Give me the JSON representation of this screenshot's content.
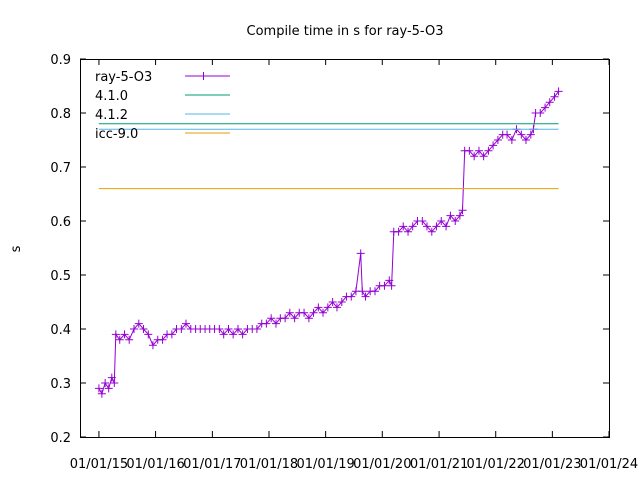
{
  "chart_data": {
    "type": "line",
    "title": "Compile time in s for ray-5-O3",
    "xlabel": "",
    "ylabel": "s",
    "x_ticks": [
      "01/01/15",
      "01/01/16",
      "01/01/17",
      "01/01/18",
      "01/01/19",
      "01/01/20",
      "01/01/21",
      "01/01/22",
      "01/01/23",
      "01/01/24"
    ],
    "xlim": [
      "2014-09-01",
      "2024-01-01"
    ],
    "y_ticks": [
      "0.2",
      "0.3",
      "0.4",
      "0.5",
      "0.6",
      "0.7",
      "0.8",
      "0.9"
    ],
    "ylim": [
      0.2,
      0.9
    ],
    "grid": false,
    "legend_position": "top-left",
    "series": [
      {
        "name": "ray-5-O3",
        "style": "linespoints",
        "color": "#9400d3",
        "points": [
          [
            "2015-01-01",
            0.29
          ],
          [
            "2015-01-20",
            0.28
          ],
          [
            "2015-02-10",
            0.3
          ],
          [
            "2015-03-05",
            0.29
          ],
          [
            "2015-03-25",
            0.31
          ],
          [
            "2015-04-10",
            0.3
          ],
          [
            "2015-04-20",
            0.39
          ],
          [
            "2015-05-15",
            0.38
          ],
          [
            "2015-06-15",
            0.39
          ],
          [
            "2015-07-15",
            0.38
          ],
          [
            "2015-08-15",
            0.4
          ],
          [
            "2015-09-15",
            0.41
          ],
          [
            "2015-10-15",
            0.4
          ],
          [
            "2015-11-15",
            0.39
          ],
          [
            "2015-12-15",
            0.37
          ],
          [
            "2016-01-15",
            0.38
          ],
          [
            "2016-02-15",
            0.38
          ],
          [
            "2016-03-15",
            0.39
          ],
          [
            "2016-04-15",
            0.39
          ],
          [
            "2016-05-15",
            0.4
          ],
          [
            "2016-06-15",
            0.4
          ],
          [
            "2016-07-15",
            0.41
          ],
          [
            "2016-08-15",
            0.4
          ],
          [
            "2016-09-15",
            0.4
          ],
          [
            "2016-10-15",
            0.4
          ],
          [
            "2016-11-15",
            0.4
          ],
          [
            "2016-12-15",
            0.4
          ],
          [
            "2017-01-15",
            0.4
          ],
          [
            "2017-02-15",
            0.4
          ],
          [
            "2017-03-15",
            0.39
          ],
          [
            "2017-04-15",
            0.4
          ],
          [
            "2017-05-15",
            0.39
          ],
          [
            "2017-06-15",
            0.4
          ],
          [
            "2017-07-15",
            0.39
          ],
          [
            "2017-08-15",
            0.4
          ],
          [
            "2017-09-15",
            0.4
          ],
          [
            "2017-10-15",
            0.4
          ],
          [
            "2017-11-15",
            0.41
          ],
          [
            "2017-12-15",
            0.41
          ],
          [
            "2018-01-15",
            0.42
          ],
          [
            "2018-02-15",
            0.41
          ],
          [
            "2018-03-15",
            0.42
          ],
          [
            "2018-04-15",
            0.42
          ],
          [
            "2018-05-15",
            0.43
          ],
          [
            "2018-06-15",
            0.42
          ],
          [
            "2018-07-15",
            0.43
          ],
          [
            "2018-08-15",
            0.43
          ],
          [
            "2018-09-15",
            0.42
          ],
          [
            "2018-10-15",
            0.43
          ],
          [
            "2018-11-15",
            0.44
          ],
          [
            "2018-12-15",
            0.43
          ],
          [
            "2019-01-15",
            0.44
          ],
          [
            "2019-02-15",
            0.45
          ],
          [
            "2019-03-15",
            0.44
          ],
          [
            "2019-04-15",
            0.45
          ],
          [
            "2019-05-15",
            0.46
          ],
          [
            "2019-06-15",
            0.46
          ],
          [
            "2019-07-15",
            0.47
          ],
          [
            "2019-08-15",
            0.54
          ],
          [
            "2019-08-25",
            0.47
          ],
          [
            "2019-09-15",
            0.46
          ],
          [
            "2019-10-15",
            0.47
          ],
          [
            "2019-11-15",
            0.47
          ],
          [
            "2019-12-15",
            0.48
          ],
          [
            "2020-01-15",
            0.48
          ],
          [
            "2020-02-15",
            0.49
          ],
          [
            "2020-03-01",
            0.48
          ],
          [
            "2020-03-15",
            0.58
          ],
          [
            "2020-04-15",
            0.58
          ],
          [
            "2020-05-15",
            0.59
          ],
          [
            "2020-06-15",
            0.58
          ],
          [
            "2020-07-15",
            0.59
          ],
          [
            "2020-08-15",
            0.6
          ],
          [
            "2020-09-15",
            0.6
          ],
          [
            "2020-10-15",
            0.59
          ],
          [
            "2020-11-15",
            0.58
          ],
          [
            "2020-12-15",
            0.59
          ],
          [
            "2021-01-15",
            0.6
          ],
          [
            "2021-02-15",
            0.59
          ],
          [
            "2021-03-15",
            0.61
          ],
          [
            "2021-04-15",
            0.6
          ],
          [
            "2021-05-15",
            0.61
          ],
          [
            "2021-06-01",
            0.62
          ],
          [
            "2021-06-15",
            0.73
          ],
          [
            "2021-07-15",
            0.73
          ],
          [
            "2021-08-15",
            0.72
          ],
          [
            "2021-09-15",
            0.73
          ],
          [
            "2021-10-15",
            0.72
          ],
          [
            "2021-11-15",
            0.73
          ],
          [
            "2021-12-15",
            0.74
          ],
          [
            "2022-01-15",
            0.75
          ],
          [
            "2022-02-15",
            0.76
          ],
          [
            "2022-03-15",
            0.76
          ],
          [
            "2022-04-15",
            0.75
          ],
          [
            "2022-05-15",
            0.77
          ],
          [
            "2022-06-15",
            0.76
          ],
          [
            "2022-07-15",
            0.75
          ],
          [
            "2022-08-15",
            0.76
          ],
          [
            "2022-09-01",
            0.77
          ],
          [
            "2022-09-15",
            0.8
          ],
          [
            "2022-10-15",
            0.8
          ],
          [
            "2022-11-15",
            0.81
          ],
          [
            "2022-12-15",
            0.82
          ],
          [
            "2023-01-15",
            0.83
          ],
          [
            "2023-02-10",
            0.84
          ]
        ]
      },
      {
        "name": "4.1.0",
        "style": "line",
        "color": "#009e73",
        "points": [
          [
            "2015-01-01",
            0.78
          ],
          [
            "2023-02-10",
            0.78
          ]
        ]
      },
      {
        "name": "4.1.2",
        "style": "line",
        "color": "#56b4e9",
        "points": [
          [
            "2015-01-01",
            0.77
          ],
          [
            "2023-02-10",
            0.77
          ]
        ]
      },
      {
        "name": "icc-9.0",
        "style": "line",
        "color": "#e69f00",
        "points": [
          [
            "2015-01-01",
            0.66
          ],
          [
            "2023-02-10",
            0.66
          ]
        ]
      }
    ]
  }
}
